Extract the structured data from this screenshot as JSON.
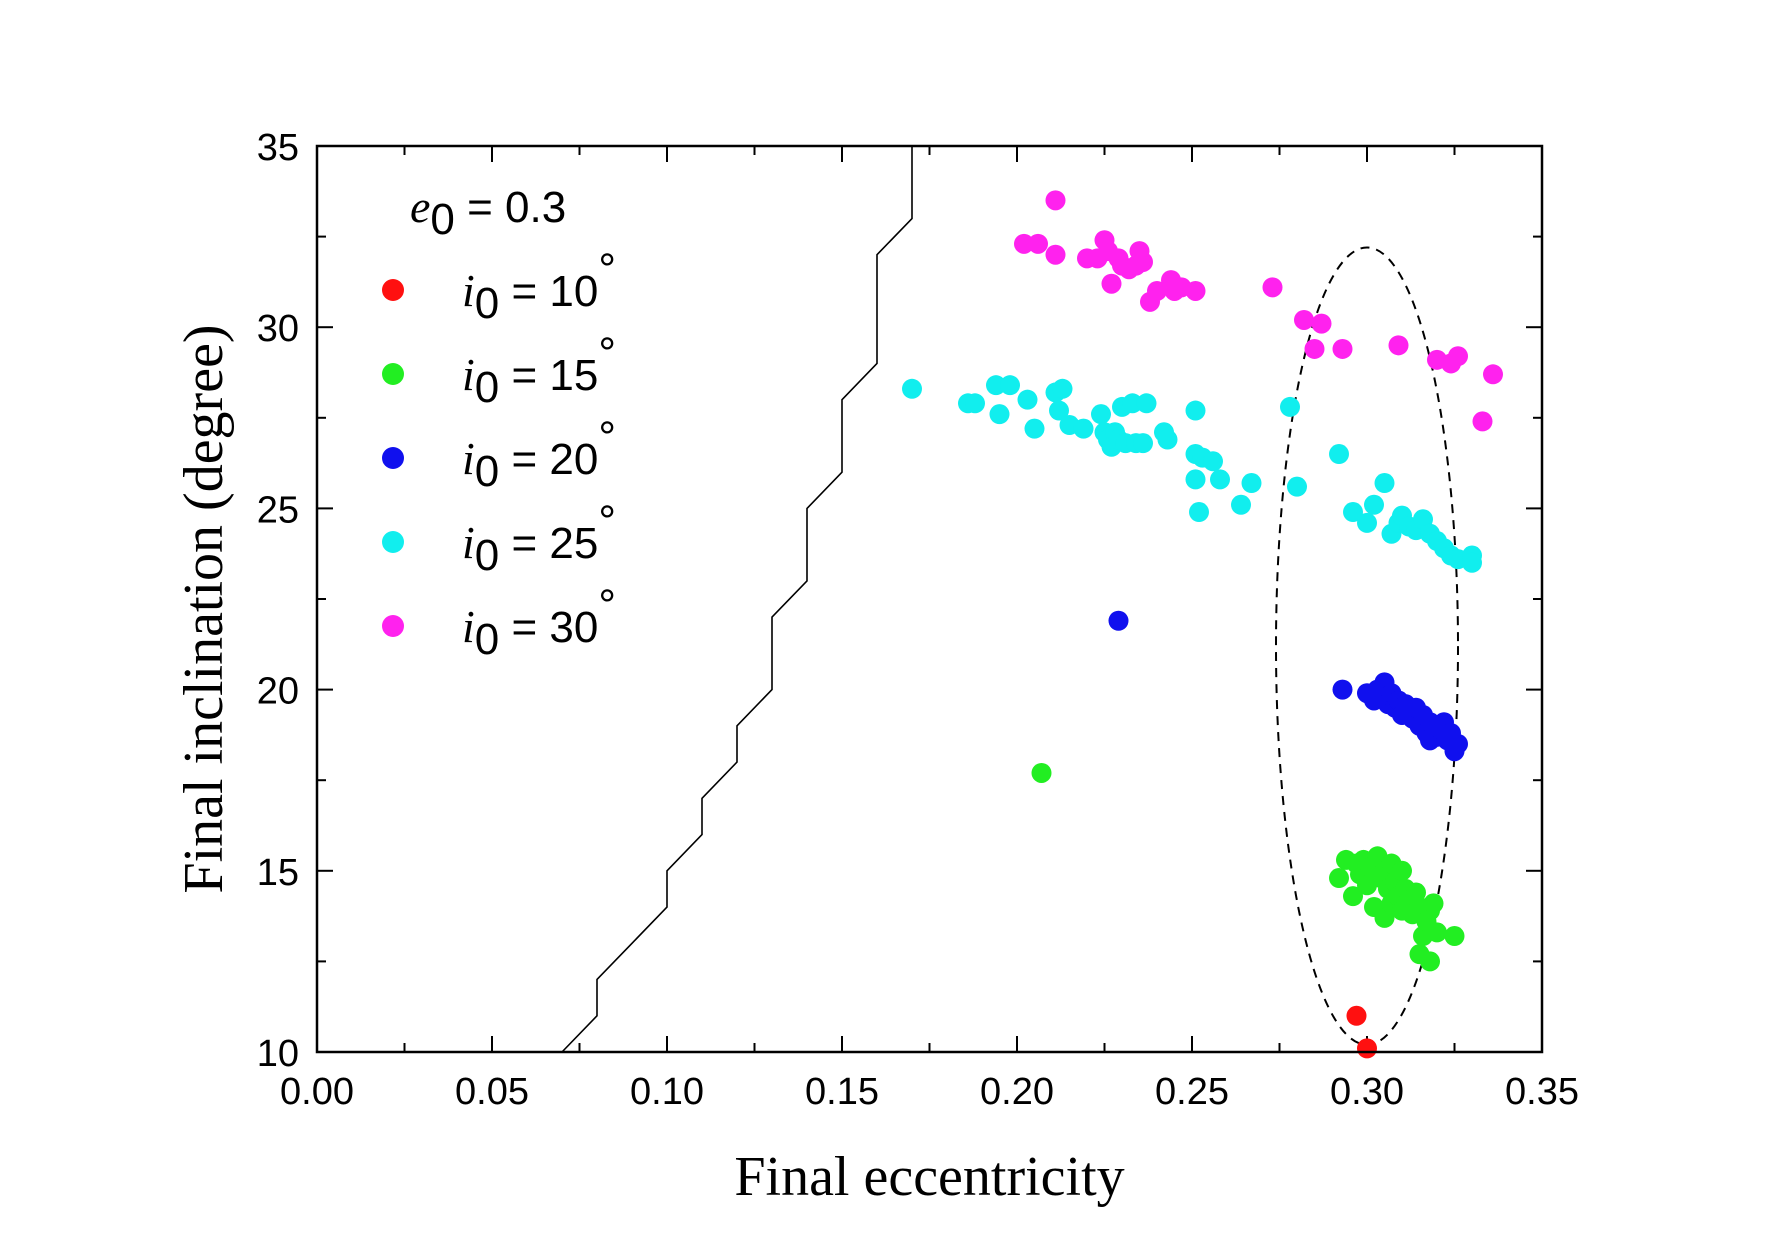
{
  "chart_data": {
    "type": "scatter",
    "title": "",
    "xlabel": "Final eccentricity",
    "ylabel": "Final inclination (degree)",
    "xlim": [
      0.0,
      0.35
    ],
    "ylim": [
      10,
      35
    ],
    "x_ticks": [
      "0.00",
      "0.05",
      "0.10",
      "0.15",
      "0.20",
      "0.25",
      "0.30",
      "0.35"
    ],
    "y_ticks": [
      "10",
      "15",
      "20",
      "25",
      "30",
      "35"
    ],
    "legend_header": {
      "symbol": "e",
      "subscript": "0",
      "text": " = 0.3"
    },
    "legend_position": "top-left",
    "series": [
      {
        "name": "i0 = 10°",
        "symbol": "i",
        "subscript": "0",
        "label": " = 10",
        "degree": "°",
        "color": "#ff1010",
        "points": [
          [
            0.297,
            11.0
          ],
          [
            0.3,
            10.1
          ]
        ]
      },
      {
        "name": "i0 = 15°",
        "symbol": "i",
        "subscript": "0",
        "label": " = 15",
        "degree": "°",
        "color": "#22ee22",
        "points": [
          [
            0.207,
            17.7
          ],
          [
            0.292,
            14.8
          ],
          [
            0.294,
            15.3
          ],
          [
            0.296,
            14.3
          ],
          [
            0.297,
            15.2
          ],
          [
            0.298,
            14.9
          ],
          [
            0.299,
            15.3
          ],
          [
            0.3,
            14.6
          ],
          [
            0.301,
            15.1
          ],
          [
            0.302,
            14.0
          ],
          [
            0.303,
            15.4
          ],
          [
            0.304,
            14.8
          ],
          [
            0.305,
            13.7
          ],
          [
            0.305,
            15.0
          ],
          [
            0.306,
            14.5
          ],
          [
            0.307,
            15.2
          ],
          [
            0.307,
            14.1
          ],
          [
            0.308,
            14.7
          ],
          [
            0.309,
            14.3
          ],
          [
            0.31,
            15.0
          ],
          [
            0.31,
            13.9
          ],
          [
            0.311,
            14.5
          ],
          [
            0.312,
            14.2
          ],
          [
            0.313,
            13.8
          ],
          [
            0.314,
            14.4
          ],
          [
            0.315,
            14.0
          ],
          [
            0.315,
            12.7
          ],
          [
            0.316,
            13.2
          ],
          [
            0.317,
            13.6
          ],
          [
            0.318,
            12.5
          ],
          [
            0.318,
            13.9
          ],
          [
            0.319,
            14.1
          ],
          [
            0.32,
            13.3
          ],
          [
            0.325,
            13.2
          ]
        ]
      },
      {
        "name": "i0 = 20°",
        "symbol": "i",
        "subscript": "0",
        "label": " = 20",
        "degree": "°",
        "color": "#1010ee",
        "points": [
          [
            0.229,
            21.9
          ],
          [
            0.293,
            20.0
          ],
          [
            0.3,
            19.9
          ],
          [
            0.302,
            19.7
          ],
          [
            0.303,
            20.0
          ],
          [
            0.304,
            19.8
          ],
          [
            0.305,
            20.2
          ],
          [
            0.306,
            19.6
          ],
          [
            0.307,
            19.9
          ],
          [
            0.308,
            19.5
          ],
          [
            0.309,
            19.7
          ],
          [
            0.31,
            19.3
          ],
          [
            0.311,
            19.6
          ],
          [
            0.312,
            19.4
          ],
          [
            0.313,
            19.2
          ],
          [
            0.314,
            19.5
          ],
          [
            0.315,
            19.0
          ],
          [
            0.316,
            19.3
          ],
          [
            0.317,
            18.8
          ],
          [
            0.318,
            19.1
          ],
          [
            0.318,
            18.6
          ],
          [
            0.319,
            19.0
          ],
          [
            0.32,
            18.7
          ],
          [
            0.321,
            18.9
          ],
          [
            0.322,
            19.1
          ],
          [
            0.323,
            18.6
          ],
          [
            0.324,
            18.8
          ],
          [
            0.325,
            18.3
          ],
          [
            0.326,
            18.5
          ]
        ]
      },
      {
        "name": "i0 = 25°",
        "symbol": "i",
        "subscript": "0",
        "label": " = 25",
        "degree": "°",
        "color": "#11eeee",
        "points": [
          [
            0.17,
            28.3
          ],
          [
            0.186,
            27.9
          ],
          [
            0.188,
            27.9
          ],
          [
            0.194,
            28.4
          ],
          [
            0.195,
            27.6
          ],
          [
            0.198,
            28.4
          ],
          [
            0.203,
            28.0
          ],
          [
            0.205,
            27.2
          ],
          [
            0.211,
            28.2
          ],
          [
            0.212,
            27.7
          ],
          [
            0.213,
            28.3
          ],
          [
            0.215,
            27.3
          ],
          [
            0.219,
            27.2
          ],
          [
            0.224,
            27.6
          ],
          [
            0.225,
            27.1
          ],
          [
            0.226,
            26.9
          ],
          [
            0.227,
            26.7
          ],
          [
            0.228,
            27.1
          ],
          [
            0.229,
            26.9
          ],
          [
            0.23,
            27.8
          ],
          [
            0.231,
            26.8
          ],
          [
            0.233,
            27.9
          ],
          [
            0.234,
            26.8
          ],
          [
            0.236,
            26.8
          ],
          [
            0.237,
            27.9
          ],
          [
            0.242,
            27.1
          ],
          [
            0.243,
            26.9
          ],
          [
            0.251,
            27.7
          ],
          [
            0.251,
            26.5
          ],
          [
            0.251,
            25.8
          ],
          [
            0.252,
            24.9
          ],
          [
            0.253,
            26.4
          ],
          [
            0.256,
            26.3
          ],
          [
            0.258,
            25.8
          ],
          [
            0.264,
            25.1
          ],
          [
            0.267,
            25.7
          ],
          [
            0.278,
            27.8
          ],
          [
            0.28,
            25.6
          ],
          [
            0.292,
            26.5
          ],
          [
            0.296,
            24.9
          ],
          [
            0.3,
            24.6
          ],
          [
            0.302,
            25.1
          ],
          [
            0.305,
            25.7
          ],
          [
            0.307,
            24.3
          ],
          [
            0.309,
            24.6
          ],
          [
            0.31,
            24.8
          ],
          [
            0.312,
            24.5
          ],
          [
            0.314,
            24.4
          ],
          [
            0.316,
            24.7
          ],
          [
            0.318,
            24.3
          ],
          [
            0.32,
            24.1
          ],
          [
            0.322,
            23.9
          ],
          [
            0.324,
            23.7
          ],
          [
            0.326,
            23.6
          ],
          [
            0.33,
            23.7
          ],
          [
            0.33,
            23.5
          ]
        ]
      },
      {
        "name": "i0 = 30°",
        "symbol": "i",
        "subscript": "0",
        "label": " = 30",
        "degree": "°",
        "color": "#ff22ee",
        "points": [
          [
            0.202,
            32.3
          ],
          [
            0.206,
            32.3
          ],
          [
            0.211,
            33.5
          ],
          [
            0.211,
            32.0
          ],
          [
            0.22,
            31.9
          ],
          [
            0.223,
            31.9
          ],
          [
            0.225,
            32.4
          ],
          [
            0.226,
            32.1
          ],
          [
            0.227,
            31.2
          ],
          [
            0.229,
            31.9
          ],
          [
            0.23,
            31.7
          ],
          [
            0.232,
            31.6
          ],
          [
            0.234,
            31.7
          ],
          [
            0.235,
            32.1
          ],
          [
            0.236,
            31.8
          ],
          [
            0.238,
            30.7
          ],
          [
            0.24,
            31.0
          ],
          [
            0.244,
            31.3
          ],
          [
            0.245,
            31.0
          ],
          [
            0.247,
            31.1
          ],
          [
            0.251,
            31.0
          ],
          [
            0.273,
            31.1
          ],
          [
            0.282,
            30.2
          ],
          [
            0.285,
            29.4
          ],
          [
            0.287,
            30.1
          ],
          [
            0.293,
            29.4
          ],
          [
            0.309,
            29.5
          ],
          [
            0.32,
            29.1
          ],
          [
            0.324,
            29.0
          ],
          [
            0.326,
            29.2
          ],
          [
            0.333,
            27.4
          ],
          [
            0.336,
            28.7
          ]
        ]
      }
    ],
    "boundary_line": [
      [
        0.07,
        10
      ],
      [
        0.08,
        11
      ],
      [
        0.08,
        12
      ],
      [
        0.09,
        13
      ],
      [
        0.1,
        14
      ],
      [
        0.1,
        15
      ],
      [
        0.11,
        16
      ],
      [
        0.11,
        17
      ],
      [
        0.12,
        18
      ],
      [
        0.12,
        19
      ],
      [
        0.13,
        20
      ],
      [
        0.13,
        22
      ],
      [
        0.14,
        23
      ],
      [
        0.14,
        25
      ],
      [
        0.15,
        26
      ],
      [
        0.15,
        28
      ],
      [
        0.16,
        29
      ],
      [
        0.16,
        32
      ],
      [
        0.17,
        33
      ],
      [
        0.17,
        35
      ]
    ],
    "annotation_ellipse": {
      "center": [
        0.3,
        21.2
      ],
      "semi_axis_x": 0.026,
      "semi_axis_y": 11.0,
      "style": "dashed"
    }
  }
}
